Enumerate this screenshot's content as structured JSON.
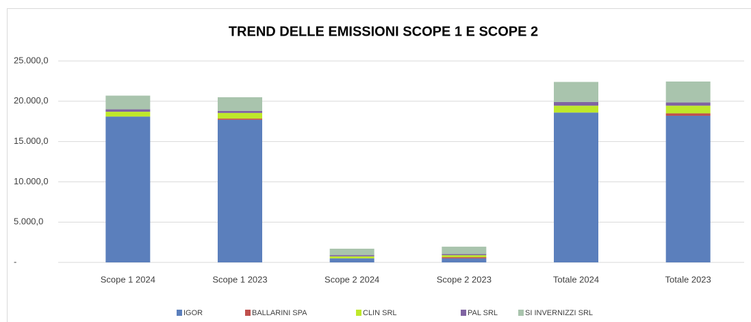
{
  "chart_data": {
    "type": "stacked_bar",
    "title": "TREND DELLE EMISSIONI SCOPE 1 E SCOPE 2",
    "categories": [
      "Scope 1 2024",
      "Scope 1 2023",
      "Scope 2 2024",
      "Scope 2 2023",
      "Totale 2024",
      "Totale 2023"
    ],
    "series": [
      {
        "name": "IGOR",
        "color": "#5b7fbc",
        "values": [
          18100,
          17700,
          500,
          500,
          18600,
          18200
        ]
      },
      {
        "name": "BALLARINI SPA",
        "color": "#c0504d",
        "values": [
          0,
          150,
          0,
          150,
          0,
          300
        ]
      },
      {
        "name": "CLIN SRL",
        "color": "#bfe82a",
        "values": [
          600,
          700,
          250,
          250,
          850,
          950
        ]
      },
      {
        "name": "PAL SRL",
        "color": "#8064a2",
        "values": [
          300,
          250,
          150,
          150,
          450,
          400
        ]
      },
      {
        "name": "SI INVERNIZZI SRL",
        "color": "#a9c4ad",
        "values": [
          1700,
          1700,
          800,
          900,
          2500,
          2600
        ]
      }
    ],
    "ylim": [
      0,
      25000
    ],
    "yticks": [
      {
        "value": 0,
        "label": "-"
      },
      {
        "value": 5000,
        "label": "5.000,0"
      },
      {
        "value": 10000,
        "label": "10.000,0"
      },
      {
        "value": 15000,
        "label": "15.000,0"
      },
      {
        "value": 20000,
        "label": "20.000,0"
      },
      {
        "value": 25000,
        "label": "25.000,0"
      }
    ],
    "grid": true,
    "legend": "bottom"
  }
}
